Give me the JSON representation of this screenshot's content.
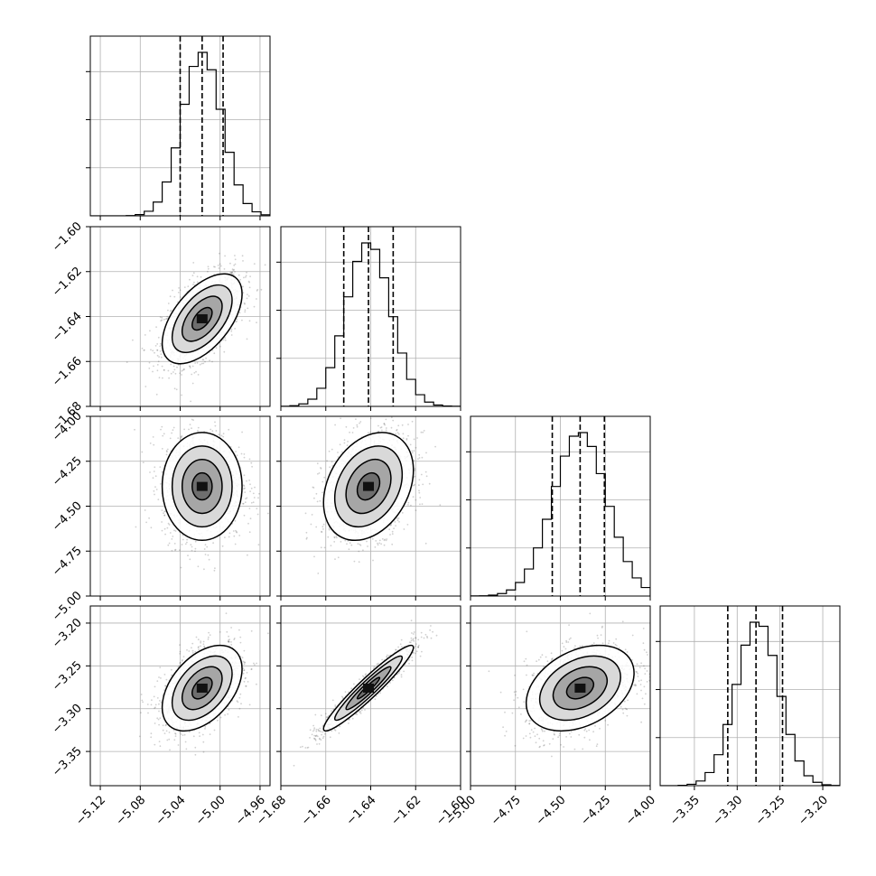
{
  "chart_data": {
    "type": "corner",
    "params": [
      {
        "range": [
          -5.13,
          -4.95
        ],
        "ticks": [
          -5.12,
          -5.08,
          -5.04,
          -5.0,
          -4.96
        ],
        "tick_labels": [
          "−5.12",
          "−5.08",
          "−5.04",
          "−5.00",
          "−4.96"
        ],
        "mean": -5.018,
        "std": 0.02,
        "quantiles": [
          -5.04,
          -5.018,
          -4.997
        ]
      },
      {
        "range": [
          -1.68,
          -1.6
        ],
        "ticks": [
          -1.68,
          -1.66,
          -1.64,
          -1.62,
          -1.6
        ],
        "tick_labels": [
          "−1.68",
          "−1.66",
          "−1.64",
          "−1.62",
          "−1.60"
        ],
        "mean": -1.641,
        "std": 0.01,
        "quantiles": [
          -1.652,
          -1.641,
          -1.63
        ]
      },
      {
        "range": [
          -5.0,
          -4.0
        ],
        "ticks": [
          -5.0,
          -4.75,
          -4.5,
          -4.25,
          -4.0
        ],
        "tick_labels": [
          "−5.00",
          "−4.75",
          "−4.50",
          "−4.25",
          "−4.00"
        ],
        "mean": -4.39,
        "std": 0.15,
        "quantiles": [
          -4.545,
          -4.39,
          -4.255
        ]
      },
      {
        "range": [
          -3.39,
          -3.18
        ],
        "ticks": [
          -3.35,
          -3.3,
          -3.25,
          -3.2
        ],
        "tick_labels": [
          "−3.35",
          "−3.30",
          "−3.25",
          "−3.20"
        ],
        "mean": -3.276,
        "std": 0.025,
        "quantiles": [
          -3.311,
          -3.278,
          -3.247
        ]
      }
    ],
    "correlations": [
      [
        1,
        0.55,
        0.0,
        0.45
      ],
      [
        0.55,
        1,
        0.3,
        0.95
      ],
      [
        0.0,
        0.3,
        1,
        0.35
      ],
      [
        0.45,
        0.95,
        0.35,
        1
      ]
    ],
    "histogram_bins": 20,
    "contour_levels_sigma": [
      0.5,
      1.0,
      1.5,
      2.0
    ],
    "grid": true,
    "title": "",
    "legend": []
  }
}
